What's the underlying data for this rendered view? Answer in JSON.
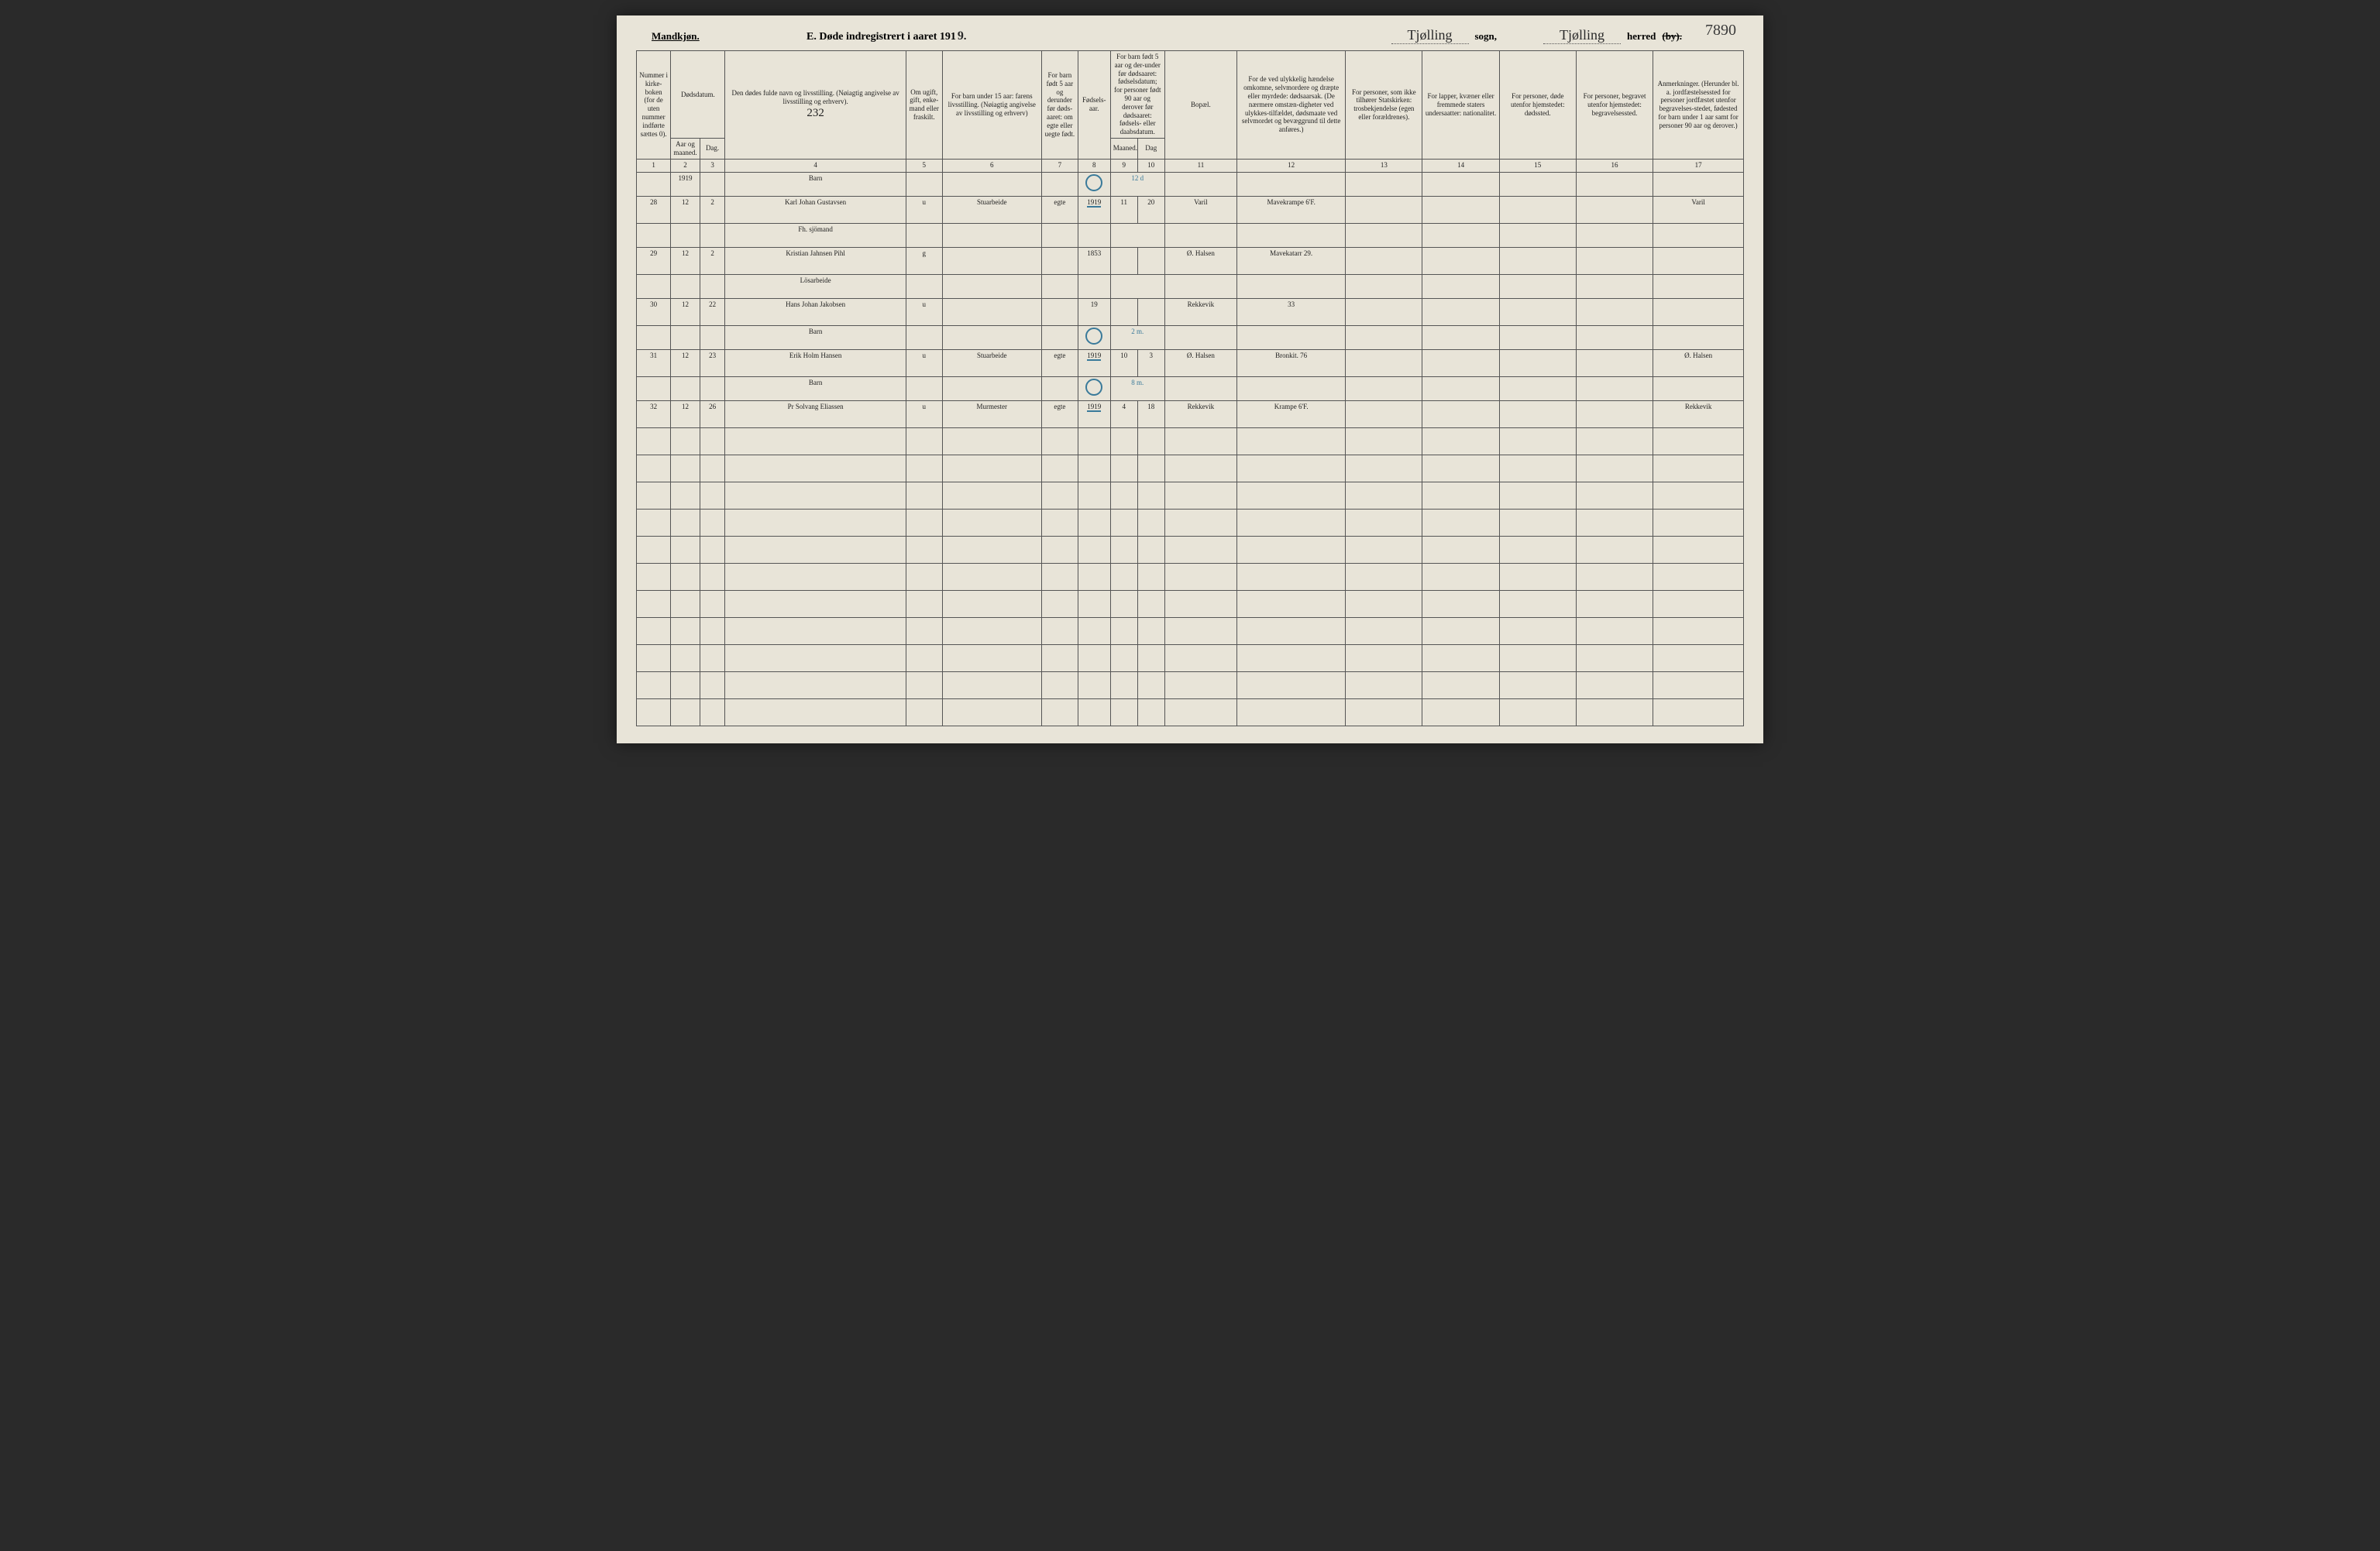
{
  "page_number_topright": "7890",
  "header": {
    "gender": "Mandkjøn.",
    "title_prefix": "E.   Døde indregistrert i aaret 191",
    "year_suffix": "9",
    "period": ".",
    "sogn_value": "Tjølling",
    "sogn_label": "sogn,",
    "herred_value": "Tjølling",
    "herred_label": "herred",
    "herred_struck": "(by)."
  },
  "column_headers": {
    "c1": "Nummer i kirke-boken (for de uten nummer indførte sættes 0).",
    "c2_top": "Dødsdatum.",
    "c2a": "Aar og maaned.",
    "c2b": "Dag.",
    "c4": "Den dødes fulde navn og livsstilling. (Nøiagtig angivelse av livsstilling og erhverv).",
    "c4_note": "232",
    "c5": "Om ugift, gift, enke-mand eller fraskilt.",
    "c6": "For barn under 15 aar: farens livsstilling. (Nøiagtig angivelse av livsstilling og erhverv)",
    "c7": "For barn født 5 aar og derunder før døds-aaret: om egte eller uegte født.",
    "c8": "Fødsels-aar.",
    "c9_10": "For barn født 5 aar og der-under før dødsaaret: fødselsdatum; for personer født 90 aar og derover før dødsaaret: fødsels- eller daabsdatum.",
    "c9": "Maaned.",
    "c10": "Dag",
    "c11": "Bopæl.",
    "c12": "For de ved ulykkelig hændelse omkomne, selvmordere og dræpte eller myrdede: dødsaarsak. (De nærmere omstæn-digheter ved ulykkes-tilfældet, dødsmaate ved selvmordet og bevæggrund til dette anføres.)",
    "c13": "For personer, som ikke tilhører Statskirken: trosbekjendelse (egen eller forældrenes).",
    "c14": "For lapper, kvæner eller fremmede staters undersaatter: nationalitet.",
    "c15": "For personer, døde utenfor hjemstedet: dødssted.",
    "c16": "For personer, begravet utenfor hjemstedet: begravelsessted.",
    "c17": "Anmerkninger. (Herunder bl. a. jordfæstelsessted for personer jordfæstet utenfor begravelses-stedet, fødested for barn under 1 aar samt for personer 90 aar og derover.)"
  },
  "colnums": [
    "1",
    "2",
    "3",
    "4",
    "5",
    "6",
    "7",
    "8",
    "9",
    "10",
    "11",
    "12",
    "13",
    "14",
    "15",
    "16",
    "17"
  ],
  "rows": [
    {
      "pre": {
        "c2": "1919",
        "c4": "Barn",
        "c8_annot": "0",
        "c9_10_annot": "12 d"
      },
      "main": {
        "c1": "28",
        "c2": "12",
        "c3": "2",
        "c4": "Karl Johan Gustavsen",
        "c5": "u",
        "c6": "Stuarbeide",
        "c7": "egte",
        "c8": "1919",
        "c9": "11",
        "c10": "20",
        "c11": "Varil",
        "c12": "Mavekrampe 6'F.",
        "c17": "Varil"
      }
    },
    {
      "pre": {
        "c4": "Fh. sjömand"
      },
      "main": {
        "c1": "29",
        "c2": "12",
        "c3": "2",
        "c4": "Kristian Jahnsen Pihl",
        "c5": "g",
        "c8": "1853",
        "c11": "Ø. Halsen",
        "c12": "Mavekatarr 29."
      }
    },
    {
      "pre": {
        "c4": "Lösarbeide"
      },
      "main": {
        "c1": "30",
        "c2": "12",
        "c3": "22",
        "c4": "Hans Johan Jakobsen",
        "c5": "u",
        "c8": "19",
        "c11": "Rekkevik",
        "c12": "33"
      }
    },
    {
      "pre": {
        "c4": "Barn",
        "c8_annot": "0",
        "c9_10_annot": "2 m."
      },
      "main": {
        "c1": "31",
        "c2": "12",
        "c3": "23",
        "c4": "Erik Holm Hansen",
        "c5": "u",
        "c6": "Stuarbeide",
        "c7": "egte",
        "c8": "1919",
        "c9": "10",
        "c10": "3",
        "c11": "Ø. Halsen",
        "c12": "Bronkit. 76",
        "c17": "Ø. Halsen"
      }
    },
    {
      "pre": {
        "c4": "Barn",
        "c8_annot": "0",
        "c9_10_annot": "8 m."
      },
      "main": {
        "c1": "32",
        "c2": "12",
        "c3": "26",
        "c4": "Pr Solvang Eliassen",
        "c5": "u",
        "c6": "Murmester",
        "c7": "egte",
        "c8": "1919",
        "c9": "4",
        "c10": "18",
        "c11": "Rekkevik",
        "c12": "Krampe 6'F.",
        "c17": "Rekkevik"
      }
    }
  ],
  "empty_rows": 11,
  "colors": {
    "paper": "#e8e4d8",
    "ink": "#2a2a2a",
    "rule": "#555555",
    "blue_pencil": "#3a7a9a"
  }
}
